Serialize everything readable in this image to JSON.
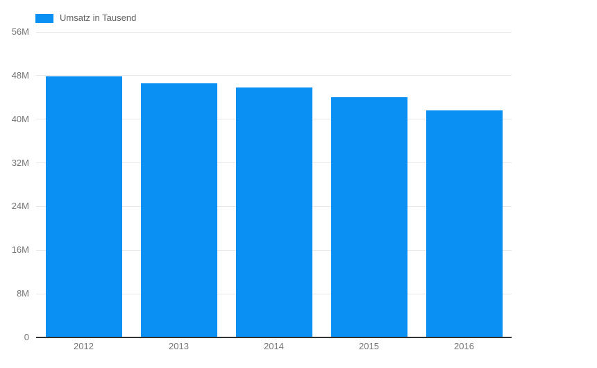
{
  "chart_data": {
    "type": "bar",
    "title": "",
    "legend": [
      {
        "label": "Umsatz in Tausend",
        "color": "#0a8ff2"
      }
    ],
    "legend_position": "top-left",
    "categories": [
      "2012",
      "2013",
      "2014",
      "2015",
      "2016"
    ],
    "series": [
      {
        "name": "Umsatz in Tausend",
        "values": [
          47.8,
          46.6,
          45.8,
          44.1,
          41.6
        ]
      }
    ],
    "value_unit": "M",
    "xlabel": "",
    "ylabel": "",
    "ylim": [
      0,
      56
    ],
    "grid": true,
    "yticks": [
      {
        "value": 56,
        "label": "56M"
      },
      {
        "value": 48,
        "label": "48M"
      },
      {
        "value": 40,
        "label": "40M"
      },
      {
        "value": 32,
        "label": "32M"
      },
      {
        "value": 24,
        "label": "24M"
      },
      {
        "value": 16,
        "label": "16M"
      },
      {
        "value": 8,
        "label": "8M"
      },
      {
        "value": 0,
        "label": "0"
      }
    ],
    "colors": {
      "bar": "#0a8ff2",
      "gridline": "#e6e6e6",
      "axis_baseline": "#333333",
      "tick_label": "#757575",
      "legend_label": "#616161",
      "background": "#ffffff"
    }
  }
}
